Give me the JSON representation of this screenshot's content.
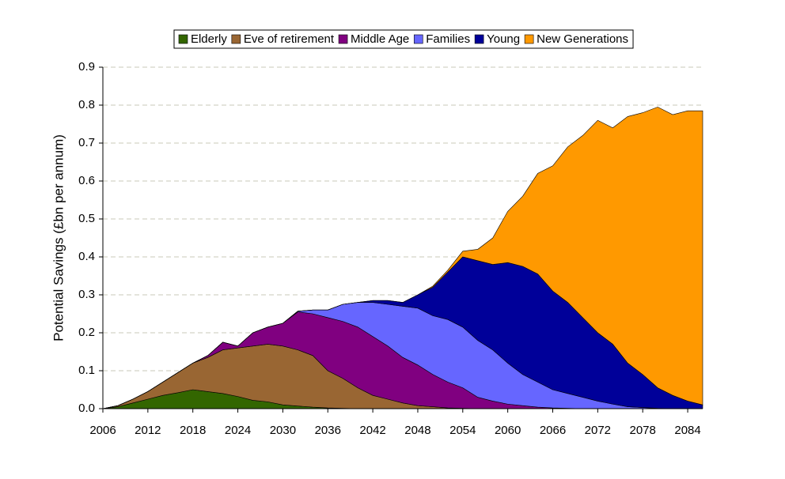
{
  "chart_data": {
    "type": "stacked-area",
    "y_label": "Potential Savings (£bn per annum)",
    "x": [
      2006,
      2008,
      2010,
      2012,
      2014,
      2016,
      2018,
      2020,
      2022,
      2024,
      2026,
      2028,
      2030,
      2032,
      2034,
      2036,
      2038,
      2040,
      2042,
      2044,
      2046,
      2048,
      2050,
      2052,
      2054,
      2056,
      2058,
      2060,
      2062,
      2064,
      2066,
      2068,
      2070,
      2072,
      2074,
      2076,
      2078,
      2080,
      2082,
      2084,
      2086
    ],
    "series": [
      {
        "name": "Elderly",
        "color": "#336600",
        "values": [
          0,
          0.005,
          0.015,
          0.025,
          0.035,
          0.042,
          0.05,
          0.045,
          0.04,
          0.032,
          0.022,
          0.018,
          0.01,
          0.007,
          0.004,
          0.002,
          0.001,
          0,
          0,
          0,
          0,
          0,
          0,
          0,
          0,
          0,
          0,
          0,
          0,
          0,
          0,
          0,
          0,
          0,
          0,
          0,
          0,
          0,
          0,
          0,
          0
        ]
      },
      {
        "name": "Eve of retirement",
        "color": "#996633",
        "values": [
          0,
          0.003,
          0.01,
          0.02,
          0.035,
          0.053,
          0.07,
          0.09,
          0.115,
          0.128,
          0.143,
          0.152,
          0.155,
          0.148,
          0.136,
          0.098,
          0.079,
          0.055,
          0.035,
          0.025,
          0.015,
          0.008,
          0.005,
          0.002,
          0.001,
          0,
          0,
          0,
          0,
          0,
          0,
          0,
          0,
          0,
          0,
          0,
          0,
          0,
          0,
          0,
          0
        ]
      },
      {
        "name": "Middle Age",
        "color": "#800080",
        "values": [
          0,
          0,
          0,
          0,
          0,
          0,
          0,
          0.005,
          0.02,
          0.005,
          0.035,
          0.045,
          0.06,
          0.1,
          0.11,
          0.14,
          0.15,
          0.16,
          0.155,
          0.14,
          0.12,
          0.107,
          0.085,
          0.068,
          0.054,
          0.03,
          0.02,
          0.012,
          0.008,
          0.004,
          0.002,
          0.001,
          0,
          0,
          0,
          0,
          0,
          0,
          0,
          0,
          0
        ]
      },
      {
        "name": "Families",
        "color": "#6666ff",
        "values": [
          0,
          0,
          0,
          0,
          0,
          0,
          0,
          0,
          0,
          0,
          0,
          0,
          0,
          0.002,
          0.01,
          0.02,
          0.045,
          0.065,
          0.09,
          0.11,
          0.135,
          0.15,
          0.155,
          0.165,
          0.16,
          0.15,
          0.135,
          0.108,
          0.082,
          0.066,
          0.048,
          0.039,
          0.03,
          0.02,
          0.012,
          0.005,
          0.003,
          0.001,
          0,
          0,
          0
        ]
      },
      {
        "name": "Young",
        "color": "#000099",
        "values": [
          0,
          0,
          0,
          0,
          0,
          0,
          0,
          0,
          0,
          0,
          0,
          0,
          0,
          0,
          0,
          0,
          0,
          0,
          0.005,
          0.01,
          0.01,
          0.035,
          0.075,
          0.125,
          0.185,
          0.21,
          0.225,
          0.265,
          0.285,
          0.285,
          0.26,
          0.24,
          0.21,
          0.18,
          0.158,
          0.115,
          0.087,
          0.054,
          0.035,
          0.02,
          0.01
        ]
      },
      {
        "name": "New Generations",
        "color": "#ff9900",
        "values": [
          0,
          0,
          0,
          0,
          0,
          0,
          0,
          0,
          0,
          0,
          0,
          0,
          0,
          0,
          0,
          0,
          0,
          0,
          0,
          0,
          0,
          0,
          0.003,
          0.005,
          0.015,
          0.03,
          0.07,
          0.135,
          0.185,
          0.265,
          0.33,
          0.41,
          0.48,
          0.56,
          0.57,
          0.65,
          0.69,
          0.74,
          0.74,
          0.765,
          0.775
        ]
      }
    ],
    "xlim": [
      2006,
      2086
    ],
    "xticks": [
      2006,
      2012,
      2018,
      2024,
      2030,
      2036,
      2042,
      2048,
      2054,
      2060,
      2066,
      2072,
      2078,
      2084
    ],
    "ylim": [
      0,
      0.9
    ],
    "yticks": [
      {
        "value": 0,
        "label": "0.0"
      },
      0.1,
      0.2,
      0.3,
      0.4,
      0.5,
      0.6,
      0.7,
      0.8,
      0.9
    ],
    "grid": true,
    "legend": "top"
  }
}
